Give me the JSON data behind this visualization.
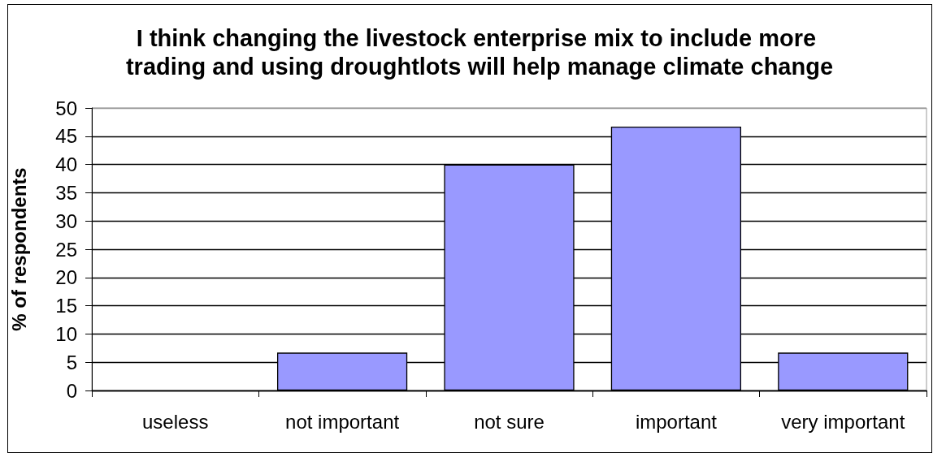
{
  "chart_data": {
    "type": "bar",
    "title": "I think changing the livestock enterprise mix to include more trading and using droughtlots will help manage climate change",
    "ylabel": "% of respondents",
    "categories": [
      "useless",
      "not important",
      "not sure",
      "important",
      "very important"
    ],
    "values": [
      0,
      6.7,
      40,
      46.7,
      6.7
    ],
    "color": "#9999ff",
    "ylim": [
      0,
      50
    ],
    "yticks": [
      0,
      5,
      10,
      15,
      20,
      25,
      30,
      35,
      40,
      45,
      50
    ],
    "grid": "y"
  }
}
